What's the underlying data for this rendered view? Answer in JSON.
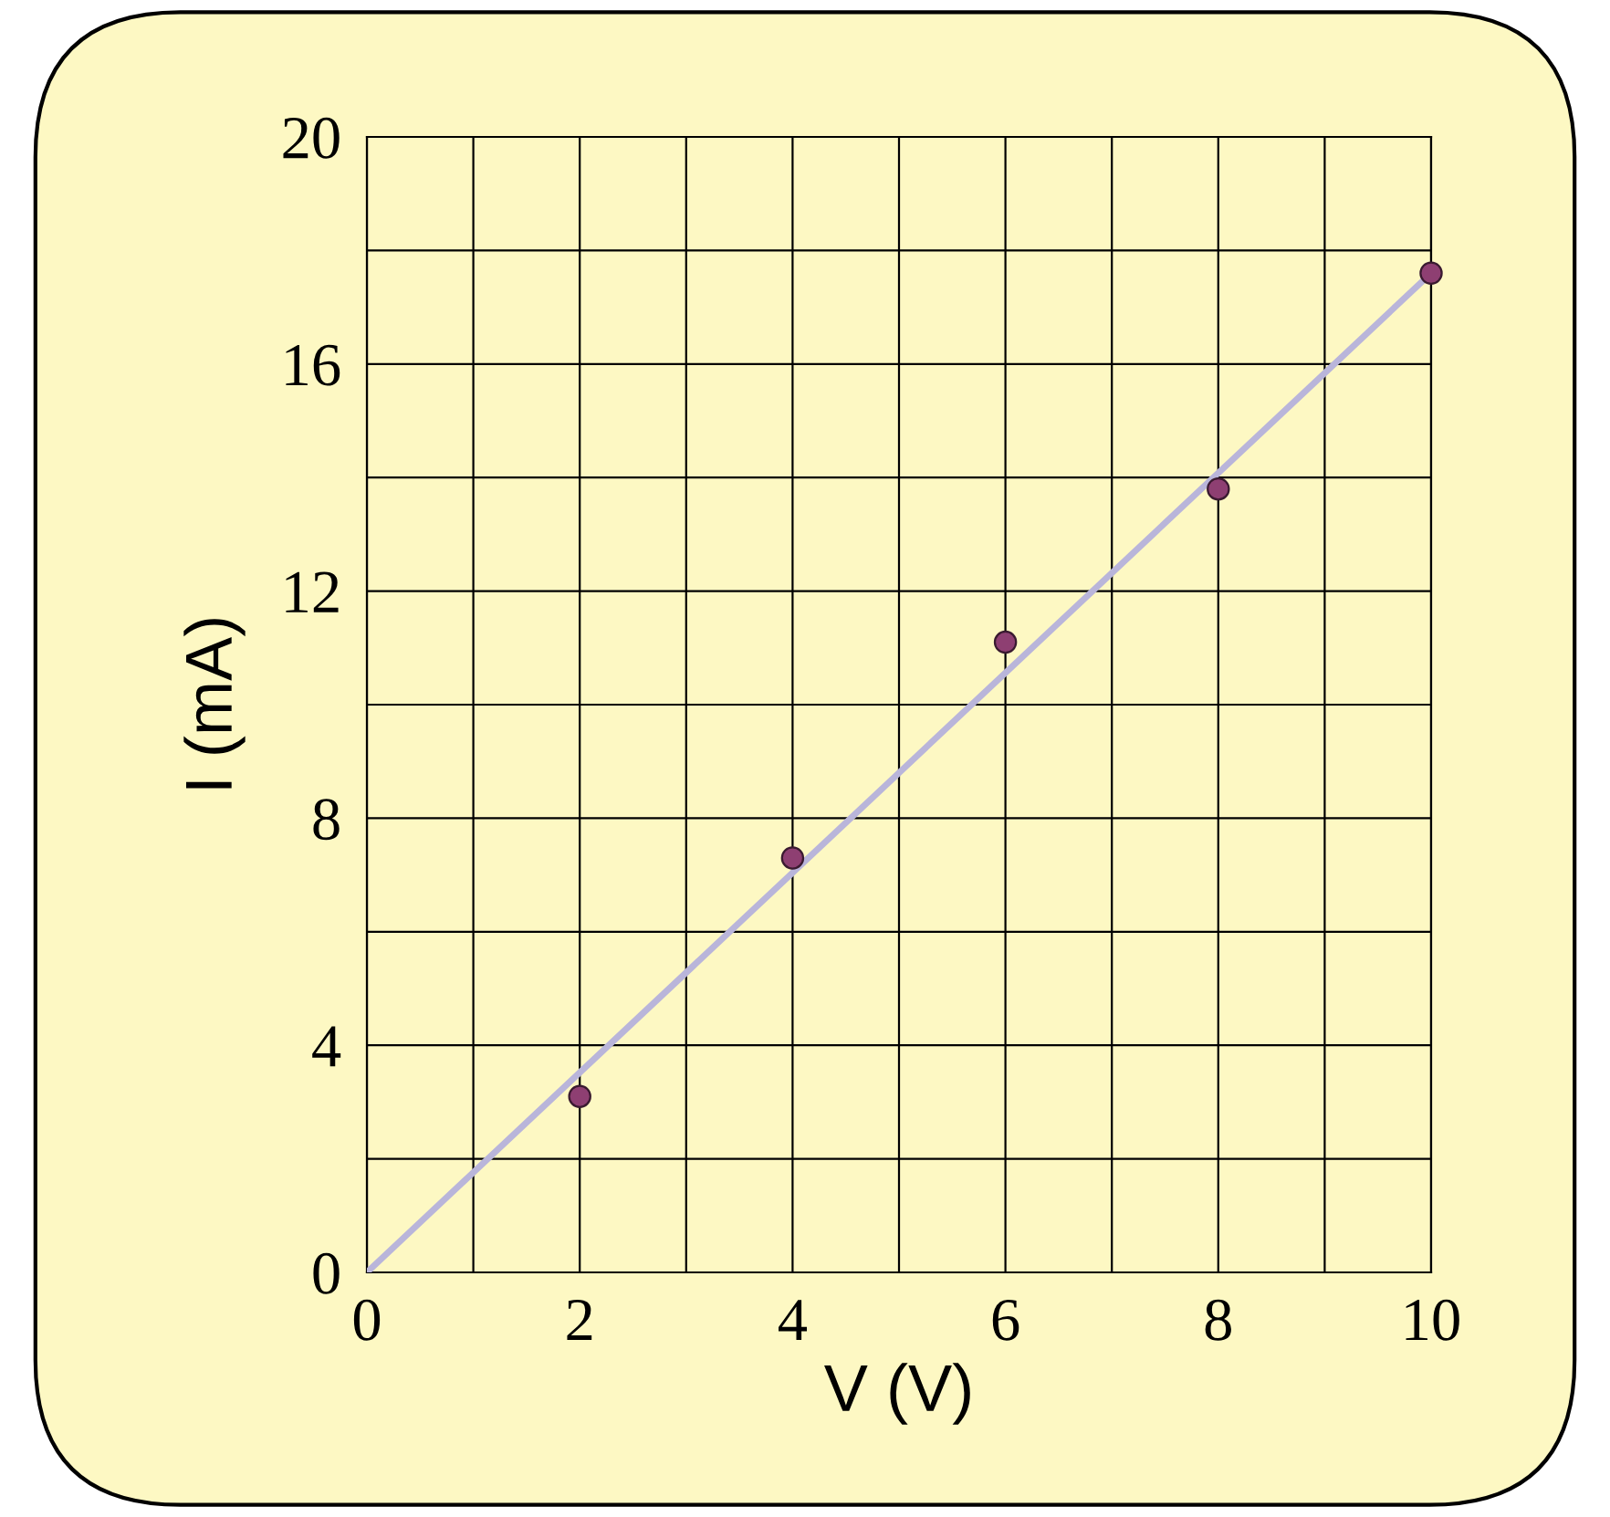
{
  "chart_data": {
    "type": "scatter",
    "xlabel": "V (V)",
    "ylabel": "I (mA)",
    "series": [
      {
        "color": "#8e3f72",
        "x": [
          2,
          4,
          6,
          8,
          10
        ],
        "values": [
          3.1,
          7.3,
          11.1,
          13.8,
          17.6
        ],
        "marker": "circle"
      },
      {
        "type": "line",
        "color": "#b9b5da",
        "x": [
          0,
          10
        ],
        "values": [
          0,
          17.6
        ],
        "marker": "none",
        "line_style": "solid"
      }
    ],
    "xlim": [
      0,
      10
    ],
    "ylim": [
      0,
      20
    ],
    "xticks": [
      0,
      {
        "value": 1,
        "label": null
      },
      2,
      {
        "value": 3,
        "label": null
      },
      4,
      {
        "value": 5,
        "label": null
      },
      6,
      {
        "value": 7,
        "label": null
      },
      8,
      {
        "value": 9,
        "label": null
      },
      10
    ],
    "yticks": [
      0,
      {
        "value": 2,
        "label": null
      },
      4,
      {
        "value": 6,
        "label": null
      },
      8,
      {
        "value": 10,
        "label": null
      },
      12,
      {
        "value": 14,
        "label": null
      },
      16,
      {
        "value": 18,
        "label": null
      },
      20
    ],
    "grid": true
  }
}
